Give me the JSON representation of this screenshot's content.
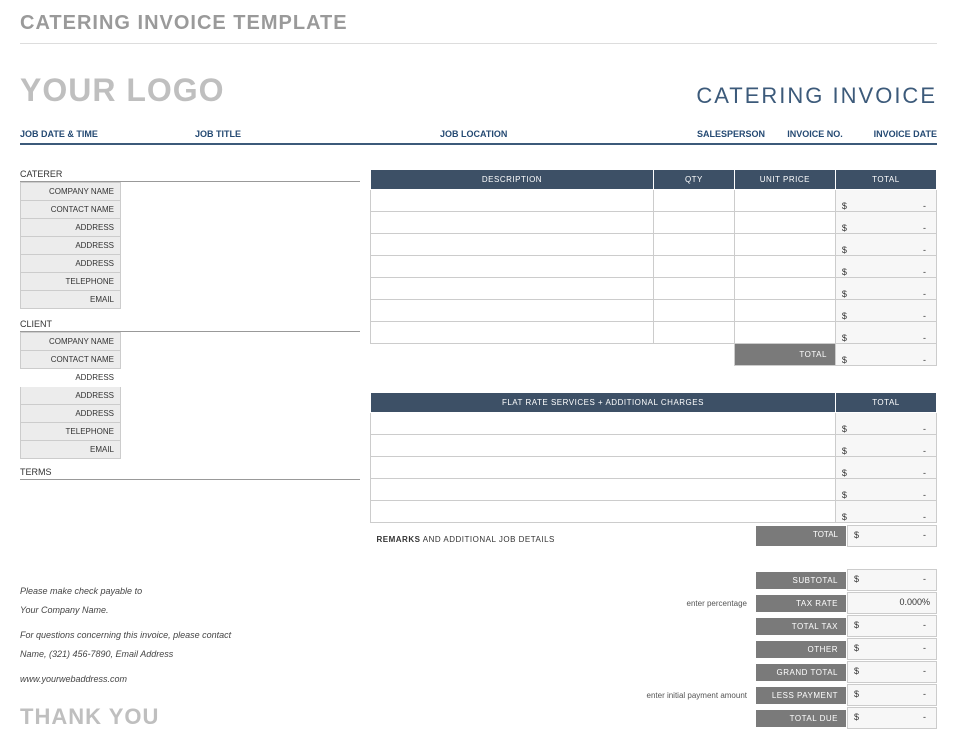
{
  "page_header": "CATERING INVOICE TEMPLATE",
  "logo_text": "YOUR LOGO",
  "invoice_title": "CATERING INVOICE",
  "columns": {
    "job_date_time": "JOB DATE & TIME",
    "job_title": "JOB TITLE",
    "job_location": "JOB LOCATION",
    "salesperson": "SALESPERSON",
    "invoice_no": "INVOICE NO.",
    "invoice_date": "INVOICE DATE"
  },
  "caterer": {
    "section": "CATERER",
    "fields": [
      "COMPANY NAME",
      "CONTACT NAME",
      "ADDRESS",
      "ADDRESS",
      "ADDRESS",
      "TELEPHONE",
      "EMAIL"
    ]
  },
  "client": {
    "section": "CLIENT",
    "fields": [
      "COMPANY NAME",
      "CONTACT NAME",
      "ADDRESS",
      "ADDRESS",
      "ADDRESS",
      "TELEPHONE",
      "EMAIL"
    ]
  },
  "terms_label": "TERMS",
  "line_items": {
    "headers": {
      "desc": "DESCRIPTION",
      "qty": "QTY",
      "unit": "UNIT PRICE",
      "total": "TOTAL"
    },
    "rows": 7,
    "total_label": "TOTAL",
    "currency": "$",
    "dash": "-"
  },
  "flat_rate": {
    "headers": {
      "desc": "FLAT RATE SERVICES + ADDITIONAL CHARGES",
      "total": "TOTAL"
    },
    "rows": 5,
    "total_label": "TOTAL",
    "currency": "$",
    "dash": "-"
  },
  "remarks_prefix": "REMARKS",
  "remarks_rest": " AND ADDITIONAL JOB DETAILS",
  "totals": [
    {
      "label": "SUBTOTAL",
      "hint": "",
      "value_prefix": "$",
      "value": "-"
    },
    {
      "label": "TAX RATE",
      "hint": "enter percentage",
      "value_prefix": "",
      "value": "0.000%"
    },
    {
      "label": "TOTAL TAX",
      "hint": "",
      "value_prefix": "$",
      "value": "-"
    },
    {
      "label": "OTHER",
      "hint": "",
      "value_prefix": "$",
      "value": "-"
    },
    {
      "label": "GRAND TOTAL",
      "hint": "",
      "value_prefix": "$",
      "value": "-"
    },
    {
      "label": "LESS PAYMENT",
      "hint": "enter initial payment amount",
      "value_prefix": "$",
      "value": "-"
    },
    {
      "label": "TOTAL DUE",
      "hint": "",
      "value_prefix": "$",
      "value": "-"
    }
  ],
  "footer": {
    "payable": "Please make check payable to",
    "company": "Your Company Name.",
    "questions": "For questions concerning this invoice, please contact",
    "contact": "Name, (321) 456-7890, Email Address",
    "web": "www.yourwebaddress.com"
  },
  "thank_you": "THANK YOU",
  "colors": {
    "header_bg": "#3d5066",
    "sum_bg": "#7a7a7a",
    "field_bg": "#ececec",
    "accent": "#3c5a7a",
    "muted": "#bfbfbf"
  }
}
